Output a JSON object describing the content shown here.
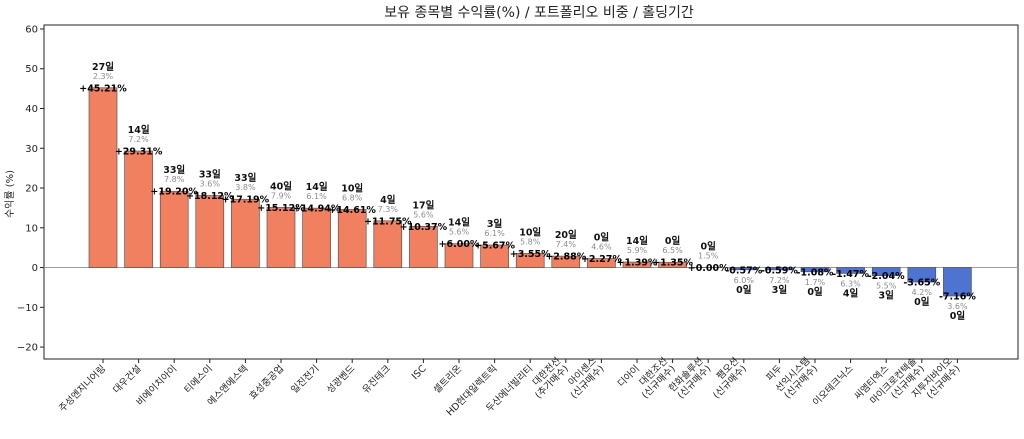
{
  "chart_data": {
    "type": "bar",
    "title": "보유 종목별 수익률(%) / 포트폴리오 비중 / 홀딩기간",
    "ylabel": "수익률 (%)",
    "xlabel": "",
    "ylim": [
      -23,
      61
    ],
    "yticks": [
      -20,
      -10,
      0,
      10,
      20,
      30,
      40,
      50,
      60
    ],
    "ytick_labels": [
      "−20",
      "−10",
      "0",
      "10",
      "20",
      "30",
      "40",
      "50",
      "60"
    ],
    "grid": false,
    "colors": {
      "positive": "#f08060",
      "negative": "#4f73d1",
      "zero_line": "#9e9e9e"
    },
    "categories": [
      [
        "주성엔지니어링"
      ],
      [
        "대우건설"
      ],
      [
        "비에이치아이"
      ],
      [
        "티에스이"
      ],
      [
        "에스앤에스텍"
      ],
      [
        "효성중공업"
      ],
      [
        "일진전기"
      ],
      [
        "성광벤드"
      ],
      [
        "유진테크"
      ],
      [
        "ISC"
      ],
      [
        "셀트리온"
      ],
      [
        "HD현대일렉트릭"
      ],
      [
        "두산에너빌리티"
      ],
      [
        "대한전선",
        "(추가매수)"
      ],
      [
        "아이센스",
        "(신규매수)"
      ],
      [
        "디아이"
      ],
      [
        "대한조선",
        "(신규매수)"
      ],
      [
        "한화솔루션",
        "(신규매수)"
      ],
      [
        "팸오션",
        "(신규매수)"
      ],
      [
        "피두"
      ],
      [
        "선익시스템",
        "(신규매수)"
      ],
      [
        "이오테크닉스"
      ],
      [
        "씨엠티엑스"
      ],
      [
        "마이크로컨텍솔",
        "(신규매수)"
      ],
      [
        "지투지바이오",
        "(신규매수)"
      ]
    ],
    "values": [
      45.21,
      29.31,
      19.2,
      18.12,
      17.19,
      15.12,
      14.94,
      14.61,
      11.75,
      10.37,
      6.0,
      5.67,
      3.55,
      2.88,
      2.27,
      1.39,
      1.35,
      0.0,
      -0.57,
      -0.59,
      -1.08,
      -1.47,
      -2.04,
      -3.65,
      -7.16
    ],
    "value_labels": [
      "+45.21%",
      "+29.31%",
      "+19.20%",
      "+18.12%",
      "+17.19%",
      "+15.12%",
      "+14.94%",
      "+14.61%",
      "+11.75%",
      "+10.37%",
      "+6.00%",
      "+5.67%",
      "+3.55%",
      "+2.88%",
      "+2.27%",
      "+1.39%",
      "+1.35%",
      "+0.00%",
      "-0.57%",
      "-0.59%",
      "-1.08%",
      "-1.47%",
      "-2.04%",
      "-3.65%",
      "-7.16%"
    ],
    "holding_days": [
      "27일",
      "14일",
      "33일",
      "33일",
      "33일",
      "40일",
      "14일",
      "10일",
      "4일",
      "17일",
      "14일",
      "3일",
      "10일",
      "20일",
      "0일",
      "14일",
      "0일",
      "0일",
      "0일",
      "3일",
      "0일",
      "4일",
      "3일",
      "0일",
      "0일"
    ],
    "weights": [
      "2.3%",
      "7.2%",
      "7.8%",
      "3.6%",
      "3.8%",
      "7.9%",
      "6.1%",
      "6.8%",
      "7.3%",
      "5.6%",
      "5.6%",
      "6.1%",
      "5.8%",
      "7.4%",
      "4.6%",
      "5.9%",
      "6.5%",
      "1.5%",
      "6.0%",
      "7.2%",
      "1.7%",
      "6.3%",
      "5.5%",
      "4.2%",
      "3.6%"
    ]
  }
}
